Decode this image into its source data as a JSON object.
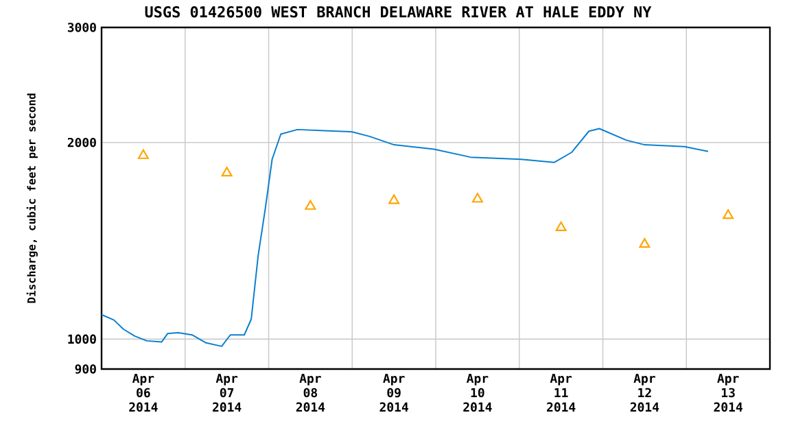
{
  "chart_data": {
    "type": "line",
    "title": "USGS 01426500 WEST BRANCH DELAWARE RIVER AT HALE EDDY NY",
    "ylabel": "Discharge, cubic feet per second",
    "log": "y",
    "grid": true,
    "xlim": [
      "2014-04-06T00:00",
      "2014-04-14T00:00"
    ],
    "xticks": [
      {
        "value": "2014-04-06T12:00",
        "label": "Apr 06 2014"
      },
      {
        "value": "2014-04-07T12:00",
        "label": "Apr 07 2014"
      },
      {
        "value": "2014-04-08T12:00",
        "label": "Apr 08 2014"
      },
      {
        "value": "2014-04-09T12:00",
        "label": "Apr 09 2014"
      },
      {
        "value": "2014-04-10T12:00",
        "label": "Apr 10 2014"
      },
      {
        "value": "2014-04-11T12:00",
        "label": "Apr 11 2014"
      },
      {
        "value": "2014-04-12T12:00",
        "label": "Apr 12 2014"
      },
      {
        "value": "2014-04-13T12:00",
        "label": "Apr 13 2014"
      },
      {
        "value": "2014-04-07T00:00",
        "label": null
      },
      {
        "value": "2014-04-08T00:00",
        "label": null
      },
      {
        "value": "2014-04-09T00:00",
        "label": null
      },
      {
        "value": "2014-04-10T00:00",
        "label": null
      },
      {
        "value": "2014-04-11T00:00",
        "label": null
      },
      {
        "value": "2014-04-12T00:00",
        "label": null
      },
      {
        "value": "2014-04-13T00:00",
        "label": null
      }
    ],
    "ylim": [
      900,
      3000
    ],
    "yticks": [
      900,
      1000,
      2000,
      3000
    ],
    "series": [
      {
        "color": "#0a7fd0",
        "marker": "none",
        "x": [
          "2014-04-06T00:00",
          "2014-04-06T03:30",
          "2014-04-06T06:15",
          "2014-04-06T09:30",
          "2014-04-06T13:00",
          "2014-04-06T17:15",
          "2014-04-06T19:00",
          "2014-04-06T22:00",
          "2014-04-07T02:00",
          "2014-04-07T06:00",
          "2014-04-07T10:30",
          "2014-04-07T13:00",
          "2014-04-07T17:00",
          "2014-04-07T19:00",
          "2014-04-07T21:00",
          "2014-04-07T23:00",
          "2014-04-08T01:00",
          "2014-04-08T03:30",
          "2014-04-08T08:15",
          "2014-04-08T16:00",
          "2014-04-09T00:00",
          "2014-04-09T05:00",
          "2014-04-09T12:00",
          "2014-04-09T23:30",
          "2014-04-10T10:00",
          "2014-04-11T00:30",
          "2014-04-11T10:00",
          "2014-04-11T15:00",
          "2014-04-11T20:00",
          "2014-04-11T23:00",
          "2014-04-12T06:45",
          "2014-04-12T12:00",
          "2014-04-12T23:30",
          "2014-04-13T06:15"
        ],
        "values": [
          1090,
          1070,
          1036,
          1011,
          994,
          990,
          1020,
          1023,
          1015,
          987,
          975,
          1015,
          1015,
          1073,
          1344,
          1579,
          1885,
          2060,
          2093,
          2085,
          2076,
          2043,
          1984,
          1953,
          1899,
          1885,
          1864,
          1931,
          2081,
          2100,
          2016,
          1984,
          1971,
          1938
        ]
      },
      {
        "type": "scatter",
        "color": "#ffa500",
        "marker": "triangle",
        "x": [
          "2014-04-06T12:00",
          "2014-04-07T12:00",
          "2014-04-08T12:00",
          "2014-04-09T12:00",
          "2014-04-10T12:00",
          "2014-04-11T12:00",
          "2014-04-12T12:00",
          "2014-04-13T12:00"
        ],
        "values": [
          1910,
          1796,
          1597,
          1630,
          1638,
          1481,
          1397,
          1546
        ]
      }
    ]
  }
}
